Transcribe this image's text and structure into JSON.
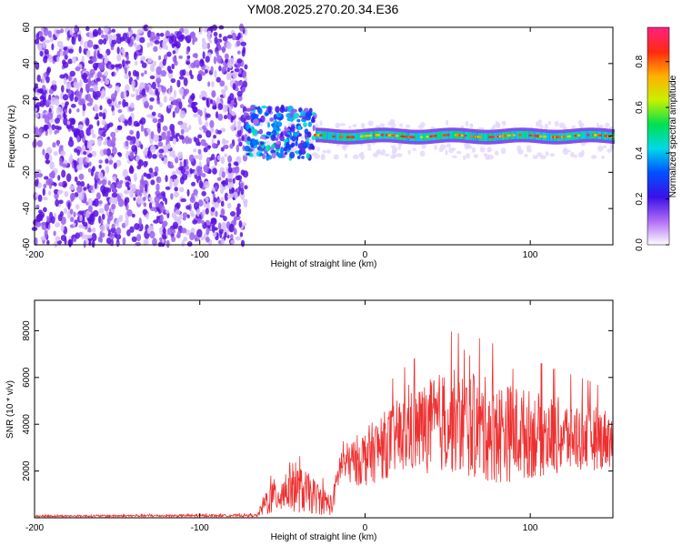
{
  "title": "YM08.2025.270.20.34.E36",
  "chart_data": [
    {
      "type": "heatmap",
      "name": "spectrogram",
      "xlabel": "Height of straight line (km)",
      "ylabel": "Frequency (Hz)",
      "xlim": [
        -200,
        150
      ],
      "ylim": [
        -60,
        60
      ],
      "xticks": [
        -200,
        -100,
        0,
        100
      ],
      "yticks": [
        -60,
        -40,
        -20,
        0,
        20,
        40,
        60
      ],
      "colorbar": {
        "label": "Normalized spectral amplitude",
        "range": [
          0.0,
          0.95
        ],
        "ticks": [
          0.0,
          0.2,
          0.4,
          0.6,
          0.8
        ],
        "colormap": [
          "#ffffff",
          "#b06cf5",
          "#3a10e8",
          "#0050ff",
          "#00d8e8",
          "#00e050",
          "#c8f000",
          "#ffb000",
          "#ff2a10",
          "#ff2080"
        ]
      },
      "regions": [
        {
          "description": "broadband noise",
          "x": [
            -200,
            -72
          ],
          "y": [
            -60,
            60
          ],
          "amplitude": 0.1
        },
        {
          "description": "scattered energy",
          "x": [
            -72,
            -30
          ],
          "y": [
            -12,
            16
          ],
          "amplitude": 0.3
        },
        {
          "description": "narrow band near 0 Hz",
          "x": [
            -30,
            150
          ],
          "y": [
            -3,
            3
          ],
          "amplitude": 0.85
        }
      ]
    },
    {
      "type": "line",
      "name": "snr",
      "xlabel": "Height of straight line (km)",
      "ylabel": "SNR (10 * v/v)",
      "xlim": [
        -200,
        150
      ],
      "ylim": [
        0,
        9300
      ],
      "xticks": [
        -200,
        -100,
        0,
        100
      ],
      "yticks": [
        2000,
        4000,
        6000,
        8000
      ],
      "color": "#ee3030",
      "envelope": [
        {
          "x": -200,
          "base": 60,
          "spread": 80
        },
        {
          "x": -65,
          "base": 80,
          "spread": 120
        },
        {
          "x": -60,
          "base": 500,
          "spread": 1200
        },
        {
          "x": -45,
          "base": 1000,
          "spread": 2200
        },
        {
          "x": -35,
          "base": 800,
          "spread": 1800
        },
        {
          "x": -20,
          "base": 400,
          "spread": 900
        },
        {
          "x": -15,
          "base": 2000,
          "spread": 1500
        },
        {
          "x": 0,
          "base": 2200,
          "spread": 2500
        },
        {
          "x": 20,
          "base": 3000,
          "spread": 3200
        },
        {
          "x": 50,
          "base": 3500,
          "spread": 4500
        },
        {
          "x": 80,
          "base": 3000,
          "spread": 4500
        },
        {
          "x": 110,
          "base": 3000,
          "spread": 3500
        },
        {
          "x": 150,
          "base": 3000,
          "spread": 2500
        }
      ]
    }
  ]
}
